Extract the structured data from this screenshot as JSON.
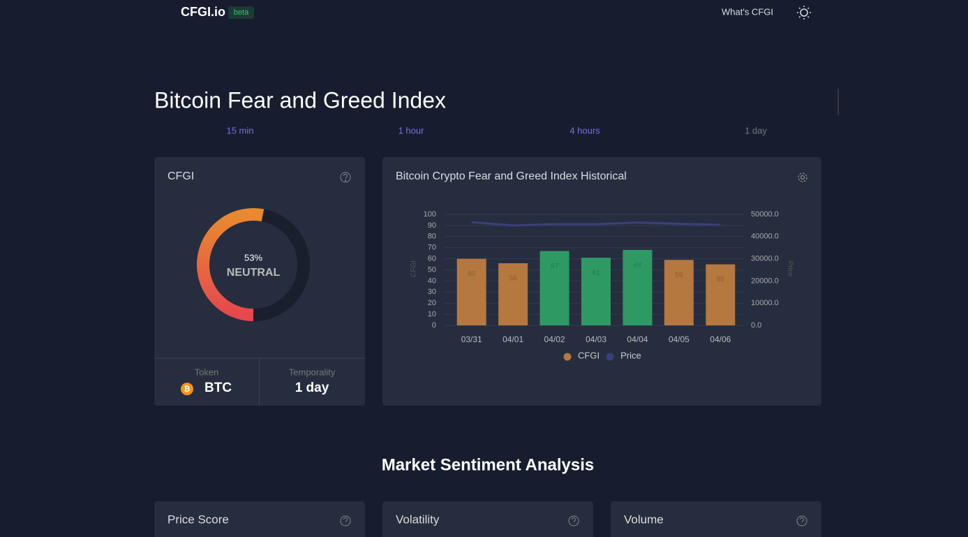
{
  "header": {
    "brand": "CFGI.io",
    "badge": "beta",
    "nav": "What's CFGI"
  },
  "title": "Bitcoin Fear and Greed Index",
  "tabs": [
    "15 min",
    "1 hour",
    "4 hours",
    "1 day"
  ],
  "gauge_card": {
    "title": "CFGI",
    "value": 53,
    "value_label": "53%",
    "label": "NEUTRAL",
    "token_label": "Token",
    "token": "BTC",
    "temporality_label": "Temporality",
    "temporality": "1 day"
  },
  "chart_data": {
    "type": "bar",
    "title": "Bitcoin Crypto Fear and Greed Index Historical",
    "categories": [
      "03/31",
      "04/01",
      "04/02",
      "04/03",
      "04/04",
      "04/05",
      "04/06"
    ],
    "series": [
      {
        "name": "CFGI",
        "type": "bar",
        "color": "#b5783f",
        "colors": [
          "#b5783f",
          "#b5783f",
          "#2e9a63",
          "#2e9a63",
          "#2e9a63",
          "#b5783f",
          "#b5783f"
        ],
        "values": [
          60,
          56,
          67,
          61,
          68,
          59,
          55
        ]
      },
      {
        "name": "Price",
        "type": "line",
        "axis": "y2",
        "color": "#3b3f7a",
        "values": [
          46500,
          45000,
          45600,
          45600,
          46300,
          45800,
          45300
        ]
      }
    ],
    "ylabel": "CFGI",
    "y2label": "Price",
    "ylim": [
      0,
      100
    ],
    "yticks": [
      0,
      10,
      20,
      30,
      40,
      50,
      60,
      70,
      80,
      90,
      100
    ],
    "y2lim": [
      0,
      50000
    ],
    "y2ticks": [
      {
        "value": 0,
        "label": "0.0"
      },
      {
        "value": 10000,
        "label": "10000.0"
      },
      {
        "value": 20000,
        "label": "20000.0"
      },
      {
        "value": 30000,
        "label": "30000.0"
      },
      {
        "value": 40000,
        "label": "40000.0"
      },
      {
        "value": 50000,
        "label": "50000.0"
      }
    ],
    "grid": true,
    "legend": "bottom"
  },
  "section_title": "Market Sentiment Analysis",
  "cards": [
    "Price Score",
    "Volatility",
    "Volume"
  ]
}
